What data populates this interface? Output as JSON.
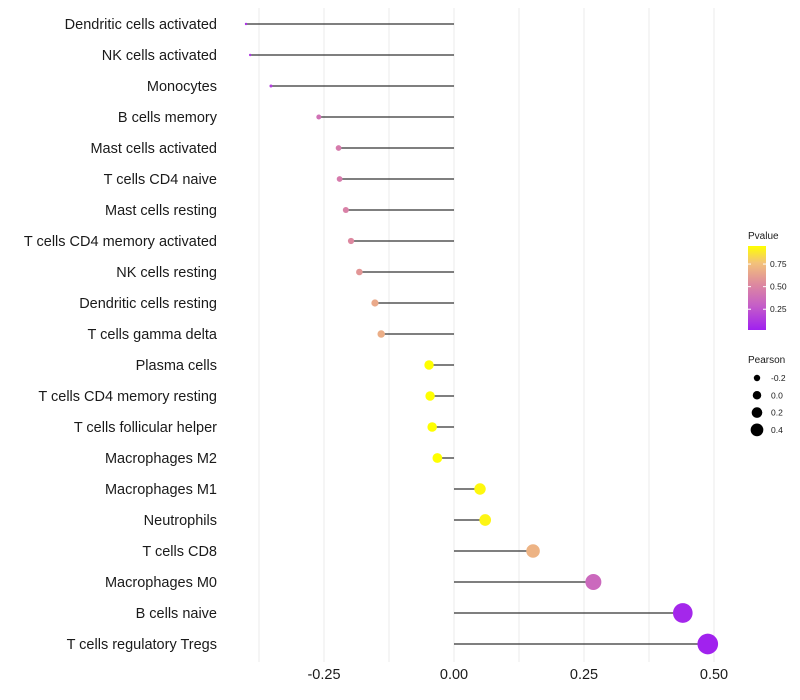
{
  "chart_data": {
    "type": "lollipop",
    "title": "",
    "xlabel": "",
    "ylabel": "",
    "xlim": [
      -0.4,
      0.5
    ],
    "x_ticks": [
      -0.25,
      0.0,
      0.25,
      0.5
    ],
    "x_tick_labels": [
      "-0.25",
      "0.00",
      "0.25",
      "0.50"
    ],
    "grid": true,
    "categories": [
      "Dendritic cells activated",
      "NK cells activated",
      "Monocytes",
      "B cells memory",
      "Mast cells activated",
      "T cells CD4 naive",
      "Mast cells resting",
      "T cells CD4 memory activated",
      "NK cells resting",
      "Dendritic cells resting",
      "T cells gamma delta",
      "Plasma cells",
      "T cells CD4 memory resting",
      "T cells follicular helper",
      "Macrophages M2",
      "Macrophages M1",
      "Neutrophils",
      "T cells CD8",
      "Macrophages M0",
      "B cells naive",
      "T cells regulatory  Tregs"
    ],
    "pearson": [
      -0.4,
      -0.392,
      -0.352,
      -0.26,
      -0.222,
      -0.22,
      -0.208,
      -0.198,
      -0.182,
      -0.152,
      -0.14,
      -0.048,
      -0.046,
      -0.042,
      -0.032,
      0.05,
      0.06,
      0.152,
      0.268,
      0.44,
      0.488
    ],
    "pvalue": [
      0.1,
      0.12,
      0.15,
      0.4,
      0.45,
      0.45,
      0.48,
      0.52,
      0.58,
      0.66,
      0.68,
      0.95,
      0.96,
      0.96,
      0.97,
      0.93,
      0.92,
      0.7,
      0.35,
      0.05,
      0.03
    ],
    "legend": {
      "color_title": "Pvalue",
      "color_ticks": [
        0.25,
        0.5,
        0.75
      ],
      "color_tick_labels": [
        "0.25",
        "0.50",
        "0.75"
      ],
      "color_range": [
        0.02,
        0.95
      ],
      "size_title": "Pearson",
      "size_values": [
        -0.2,
        0.0,
        0.2,
        0.4
      ],
      "size_labels": [
        "-0.2",
        "0.0",
        "0.2",
        "0.4"
      ],
      "placement": "right"
    },
    "colors": {
      "low": "#A020F0",
      "mid": "#CD6FB0",
      "high": "#FFFF00",
      "stem": "#333333",
      "grid": "#EBEBEB"
    }
  }
}
